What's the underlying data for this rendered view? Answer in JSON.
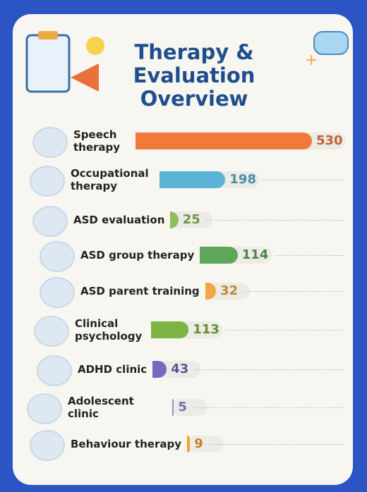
{
  "chart_data": {
    "type": "bar",
    "orientation": "horizontal",
    "title": "Therapy & Evaluation Overview",
    "categories": [
      "Speech therapy",
      "Occupational therapy",
      "ASD evaluation",
      "ASD group therapy",
      "ASD parent training",
      "Clinical psychology",
      "ADHD clinic",
      "Adolescent clinic",
      "Behaviour therapy"
    ],
    "values": [
      530,
      198,
      25,
      114,
      32,
      113,
      43,
      5,
      9
    ],
    "colors": [
      "#ef7a3c",
      "#5bb3d6",
      "#8dbd5c",
      "#5ea65a",
      "#f0a842",
      "#7cb342",
      "#7569bd",
      "#8e8fd8",
      "#f0a232"
    ]
  }
}
